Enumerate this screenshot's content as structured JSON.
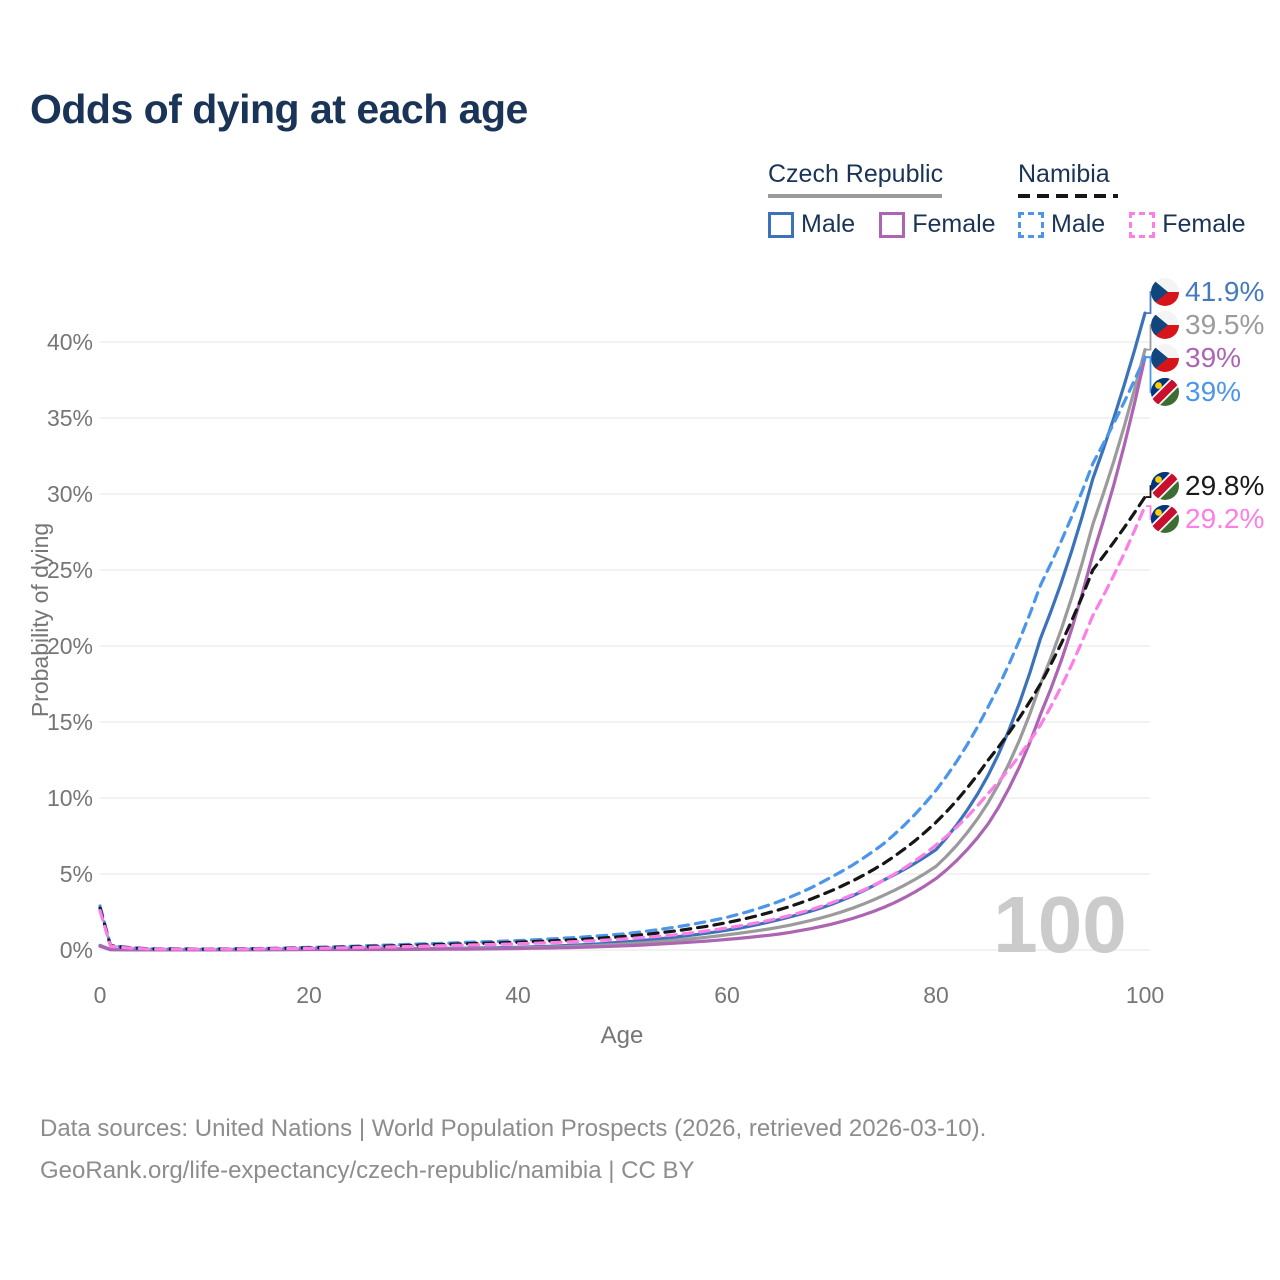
{
  "title": "Odds of dying at each age",
  "legend": {
    "groups": [
      {
        "label": "Czech Republic",
        "line_style": "solid",
        "line_color": "#9b9b9b",
        "items": [
          {
            "label": "Male",
            "color": "#3b73bb",
            "dashed": false
          },
          {
            "label": "Female",
            "color": "#ac64b3",
            "dashed": false
          }
        ]
      },
      {
        "label": "Namibia",
        "line_style": "dashed",
        "line_color": "#161616",
        "items": [
          {
            "label": "Male",
            "color": "#4b95ea",
            "dashed": true
          },
          {
            "label": "Female",
            "color": "#fd7ee7",
            "dashed": true
          }
        ]
      }
    ]
  },
  "chart_data": {
    "type": "line",
    "title": "Odds of dying at each age",
    "xlabel": "Age",
    "ylabel": "Probability of dying",
    "xlim": [
      0,
      100
    ],
    "ylim": [
      0,
      43
    ],
    "xticks": [
      0,
      20,
      40,
      60,
      80,
      100
    ],
    "yticks": [
      0,
      5,
      10,
      15,
      20,
      25,
      30,
      35,
      40
    ],
    "ytick_suffix": "%",
    "grid": true,
    "legend_position": "top-right",
    "watermark": "100",
    "ages": [
      0,
      1,
      5,
      10,
      15,
      20,
      25,
      30,
      35,
      40,
      45,
      50,
      55,
      60,
      65,
      70,
      75,
      80,
      85,
      90,
      95,
      100
    ],
    "series": [
      {
        "name": "Czech Republic Male",
        "color": "#3b73bb",
        "dashed": false,
        "values": [
          0.3,
          0.03,
          0.01,
          0.01,
          0.03,
          0.07,
          0.08,
          0.09,
          0.12,
          0.18,
          0.3,
          0.52,
          0.85,
          1.3,
          2.0,
          3.0,
          4.6,
          6.6,
          11.5,
          20.5,
          31.0,
          41.9
        ]
      },
      {
        "name": "Czech Republic Total",
        "color": "#9b9b9b",
        "dashed": false,
        "values": [
          0.28,
          0.03,
          0.01,
          0.01,
          0.02,
          0.05,
          0.06,
          0.07,
          0.09,
          0.14,
          0.23,
          0.39,
          0.64,
          1.0,
          1.5,
          2.3,
          3.6,
          5.5,
          9.7,
          17.5,
          28.0,
          39.5
        ]
      },
      {
        "name": "Czech Republic Female",
        "color": "#ac64b3",
        "dashed": false,
        "values": [
          0.25,
          0.02,
          0.01,
          0.01,
          0.02,
          0.03,
          0.03,
          0.04,
          0.06,
          0.1,
          0.16,
          0.27,
          0.45,
          0.7,
          1.05,
          1.7,
          2.8,
          4.7,
          8.3,
          15.5,
          26.0,
          39.0
        ]
      },
      {
        "name": "Namibia Male",
        "color": "#4b95ea",
        "dashed": true,
        "values": [
          2.9,
          0.3,
          0.08,
          0.06,
          0.09,
          0.17,
          0.27,
          0.38,
          0.5,
          0.62,
          0.8,
          1.05,
          1.5,
          2.15,
          3.2,
          4.8,
          7.0,
          10.5,
          16.0,
          24.0,
          32.0,
          39.0
        ]
      },
      {
        "name": "Namibia Total",
        "color": "#161616",
        "dashed": true,
        "values": [
          2.75,
          0.28,
          0.07,
          0.06,
          0.08,
          0.14,
          0.22,
          0.31,
          0.41,
          0.51,
          0.66,
          0.88,
          1.25,
          1.8,
          2.65,
          3.9,
          5.7,
          8.4,
          12.5,
          17.5,
          25.0,
          29.8
        ]
      },
      {
        "name": "Namibia Female",
        "color": "#fd7ee7",
        "dashed": true,
        "values": [
          2.6,
          0.25,
          0.06,
          0.05,
          0.07,
          0.11,
          0.17,
          0.24,
          0.32,
          0.41,
          0.53,
          0.72,
          1.0,
          1.45,
          2.1,
          3.1,
          4.6,
          6.9,
          10.3,
          14.8,
          22.0,
          29.2
        ]
      }
    ],
    "end_labels": [
      {
        "text": "41.9%",
        "value": 41.9,
        "series": "Czech Republic Male",
        "flag": "cz",
        "color": "#4579c0"
      },
      {
        "text": "39.5%",
        "value": 39.5,
        "series": "Czech Republic Total",
        "flag": "cz",
        "color": "#9b9b9b"
      },
      {
        "text": "39%",
        "value": 39.0,
        "series": "Czech Republic Female",
        "flag": "cz",
        "color": "#ac64b3"
      },
      {
        "text": "39%",
        "value": 39.0,
        "series": "Namibia Male",
        "flag": "na",
        "color": "#4b95ea"
      },
      {
        "text": "29.8%",
        "value": 29.8,
        "series": "Namibia Total",
        "flag": "na",
        "color": "#1a1a1a"
      },
      {
        "text": "29.2%",
        "value": 29.2,
        "series": "Namibia Female",
        "flag": "na",
        "color": "#fd7ee7"
      }
    ]
  },
  "footer": {
    "line1": "Data sources: United Nations | World Population Prospects (2026, retrieved 2026-03-10).",
    "line2": "GeoRank.org/life-expectancy/czech-republic/namibia | CC BY"
  }
}
